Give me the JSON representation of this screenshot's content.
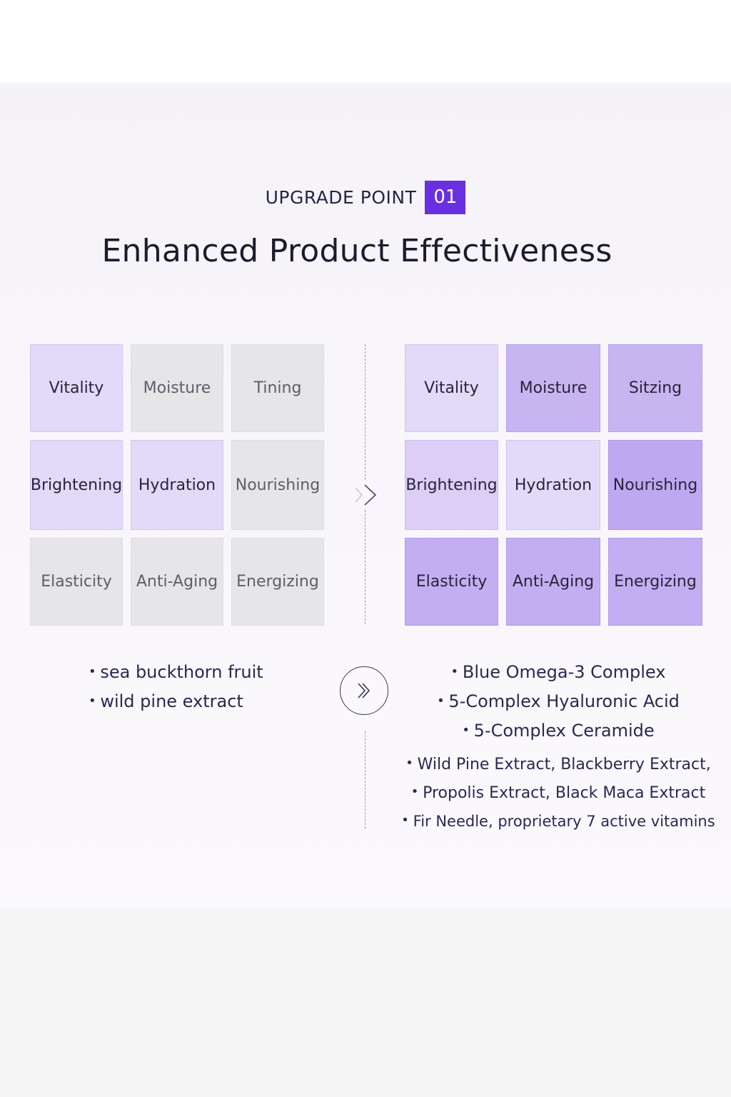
{
  "header": {
    "eyebrow": "UPGRADE POINT",
    "number": "01",
    "title": "Enhanced Product Effectiveness"
  },
  "before_grid": [
    {
      "label": "Vitality",
      "tone": "lilac"
    },
    {
      "label": "Moisture",
      "tone": "gray"
    },
    {
      "label": "Tining",
      "tone": "gray"
    },
    {
      "label": "Brightening",
      "tone": "lilac"
    },
    {
      "label": "Hydration",
      "tone": "lilac"
    },
    {
      "label": "Nourishing",
      "tone": "gray"
    },
    {
      "label": "Elasticity",
      "tone": "gray"
    },
    {
      "label": "Anti-Aging",
      "tone": "gray"
    },
    {
      "label": "Energizing",
      "tone": "gray"
    }
  ],
  "after_grid": [
    {
      "label": "Vitality",
      "tone": "lilac"
    },
    {
      "label": "Moisture",
      "tone": "violet"
    },
    {
      "label": "Sitzing",
      "tone": "violet"
    },
    {
      "label": "Brightening",
      "tone": "lilac2"
    },
    {
      "label": "Hydration",
      "tone": "lilac"
    },
    {
      "label": "Nourishing",
      "tone": "deep"
    },
    {
      "label": "Elasticity",
      "tone": "violet2"
    },
    {
      "label": "Anti-Aging",
      "tone": "violet2"
    },
    {
      "label": "Energizing",
      "tone": "violet2"
    }
  ],
  "before_ingredients": [
    "sea buckthorn fruit",
    "wild pine extract"
  ],
  "after_ingredients": [
    "Blue Omega-3 Complex",
    "5-Complex Hyaluronic Acid",
    "5-Complex Ceramide",
    "Wild Pine Extract, Blackberry Extract,",
    "Propolis Extract, Black Maca Extract",
    "Fir Needle, proprietary 7 active vitamins"
  ],
  "icons": {
    "divider_arrow": "double-chevron-right-icon",
    "circle_arrow": "double-chevron-right-circle-icon"
  },
  "colors": {
    "accent": "#6a2fe0",
    "gray_cell": "#e6e5e8",
    "lilac_cell": "#e3d9f8",
    "violet_cell": "#c7b5f2"
  }
}
